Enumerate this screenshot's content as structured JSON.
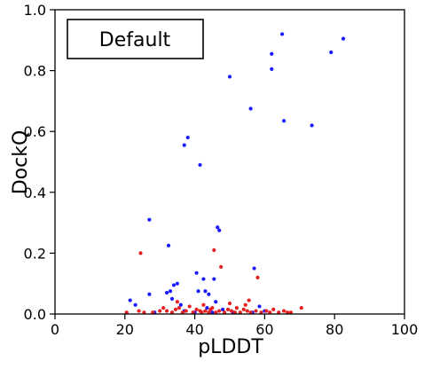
{
  "chart_data": {
    "type": "scatter",
    "xlabel": "pLDDT",
    "ylabel": "DockQ",
    "xlim": [
      0,
      100
    ],
    "ylim": [
      0,
      1.0
    ],
    "x_ticks": [
      "0",
      "20",
      "40",
      "60",
      "80",
      "100"
    ],
    "y_ticks": [
      "0.0",
      "0.2",
      "0.4",
      "0.6",
      "0.8",
      "1.0"
    ],
    "annotation": "Default",
    "grid": false,
    "series": [
      {
        "color": "#1a1aff",
        "points": [
          [
            27.0,
            0.31
          ],
          [
            32.5,
            0.225
          ],
          [
            37.0,
            0.555
          ],
          [
            38.0,
            0.58
          ],
          [
            41.5,
            0.49
          ],
          [
            46.5,
            0.285
          ],
          [
            47.0,
            0.275
          ],
          [
            50.0,
            0.78
          ],
          [
            56.0,
            0.675
          ],
          [
            57.0,
            0.15
          ],
          [
            62.0,
            0.855
          ],
          [
            62.0,
            0.805
          ],
          [
            65.0,
            0.92
          ],
          [
            65.5,
            0.635
          ],
          [
            73.5,
            0.62
          ],
          [
            79.0,
            0.86
          ],
          [
            82.5,
            0.905
          ],
          [
            21.5,
            0.045
          ],
          [
            23.0,
            0.03
          ],
          [
            27.0,
            0.065
          ],
          [
            28.5,
            0.005
          ],
          [
            32.0,
            0.07
          ],
          [
            33.0,
            0.075
          ],
          [
            34.0,
            0.095
          ],
          [
            35.0,
            0.1
          ],
          [
            33.5,
            0.05
          ],
          [
            36.0,
            0.03
          ],
          [
            37.0,
            0.01
          ],
          [
            40.5,
            0.135
          ],
          [
            41.0,
            0.075
          ],
          [
            42.5,
            0.115
          ],
          [
            43.0,
            0.075
          ],
          [
            44.0,
            0.065
          ],
          [
            45.5,
            0.115
          ],
          [
            43.5,
            0.02
          ],
          [
            46.0,
            0.04
          ],
          [
            48.0,
            0.015
          ],
          [
            51.0,
            0.005
          ],
          [
            56.5,
            0.005
          ],
          [
            58.5,
            0.025
          ],
          [
            60.0,
            0.01
          ],
          [
            45.0,
            0.005
          ],
          [
            40.0,
            0.005
          ]
        ]
      },
      {
        "color": "#e62020",
        "points": [
          [
            24.5,
            0.2
          ],
          [
            45.5,
            0.21
          ],
          [
            47.5,
            0.155
          ],
          [
            58.0,
            0.12
          ],
          [
            20.5,
            0.005
          ],
          [
            24.0,
            0.01
          ],
          [
            25.5,
            0.005
          ],
          [
            28.0,
            0.005
          ],
          [
            30.0,
            0.01
          ],
          [
            31.0,
            0.02
          ],
          [
            32.0,
            0.01
          ],
          [
            33.5,
            0.005
          ],
          [
            34.5,
            0.015
          ],
          [
            35.5,
            0.02
          ],
          [
            36.5,
            0.005
          ],
          [
            37.5,
            0.01
          ],
          [
            38.5,
            0.025
          ],
          [
            39.5,
            0.005
          ],
          [
            40.5,
            0.015
          ],
          [
            41.5,
            0.01
          ],
          [
            42.0,
            0.005
          ],
          [
            43.0,
            0.01
          ],
          [
            44.0,
            0.005
          ],
          [
            44.5,
            0.015
          ],
          [
            45.0,
            0.02
          ],
          [
            46.0,
            0.005
          ],
          [
            47.0,
            0.01
          ],
          [
            48.5,
            0.005
          ],
          [
            49.5,
            0.015
          ],
          [
            50.5,
            0.01
          ],
          [
            51.5,
            0.005
          ],
          [
            52.0,
            0.02
          ],
          [
            53.0,
            0.005
          ],
          [
            54.0,
            0.015
          ],
          [
            55.0,
            0.01
          ],
          [
            55.5,
            0.045
          ],
          [
            56.0,
            0.005
          ],
          [
            57.5,
            0.01
          ],
          [
            59.0,
            0.005
          ],
          [
            60.5,
            0.01
          ],
          [
            61.5,
            0.005
          ],
          [
            62.5,
            0.015
          ],
          [
            64.0,
            0.005
          ],
          [
            65.5,
            0.01
          ],
          [
            66.5,
            0.005
          ],
          [
            67.5,
            0.005
          ],
          [
            70.5,
            0.02
          ],
          [
            35.0,
            0.04
          ],
          [
            42.5,
            0.03
          ],
          [
            50.0,
            0.035
          ],
          [
            54.5,
            0.03
          ]
        ]
      }
    ]
  }
}
